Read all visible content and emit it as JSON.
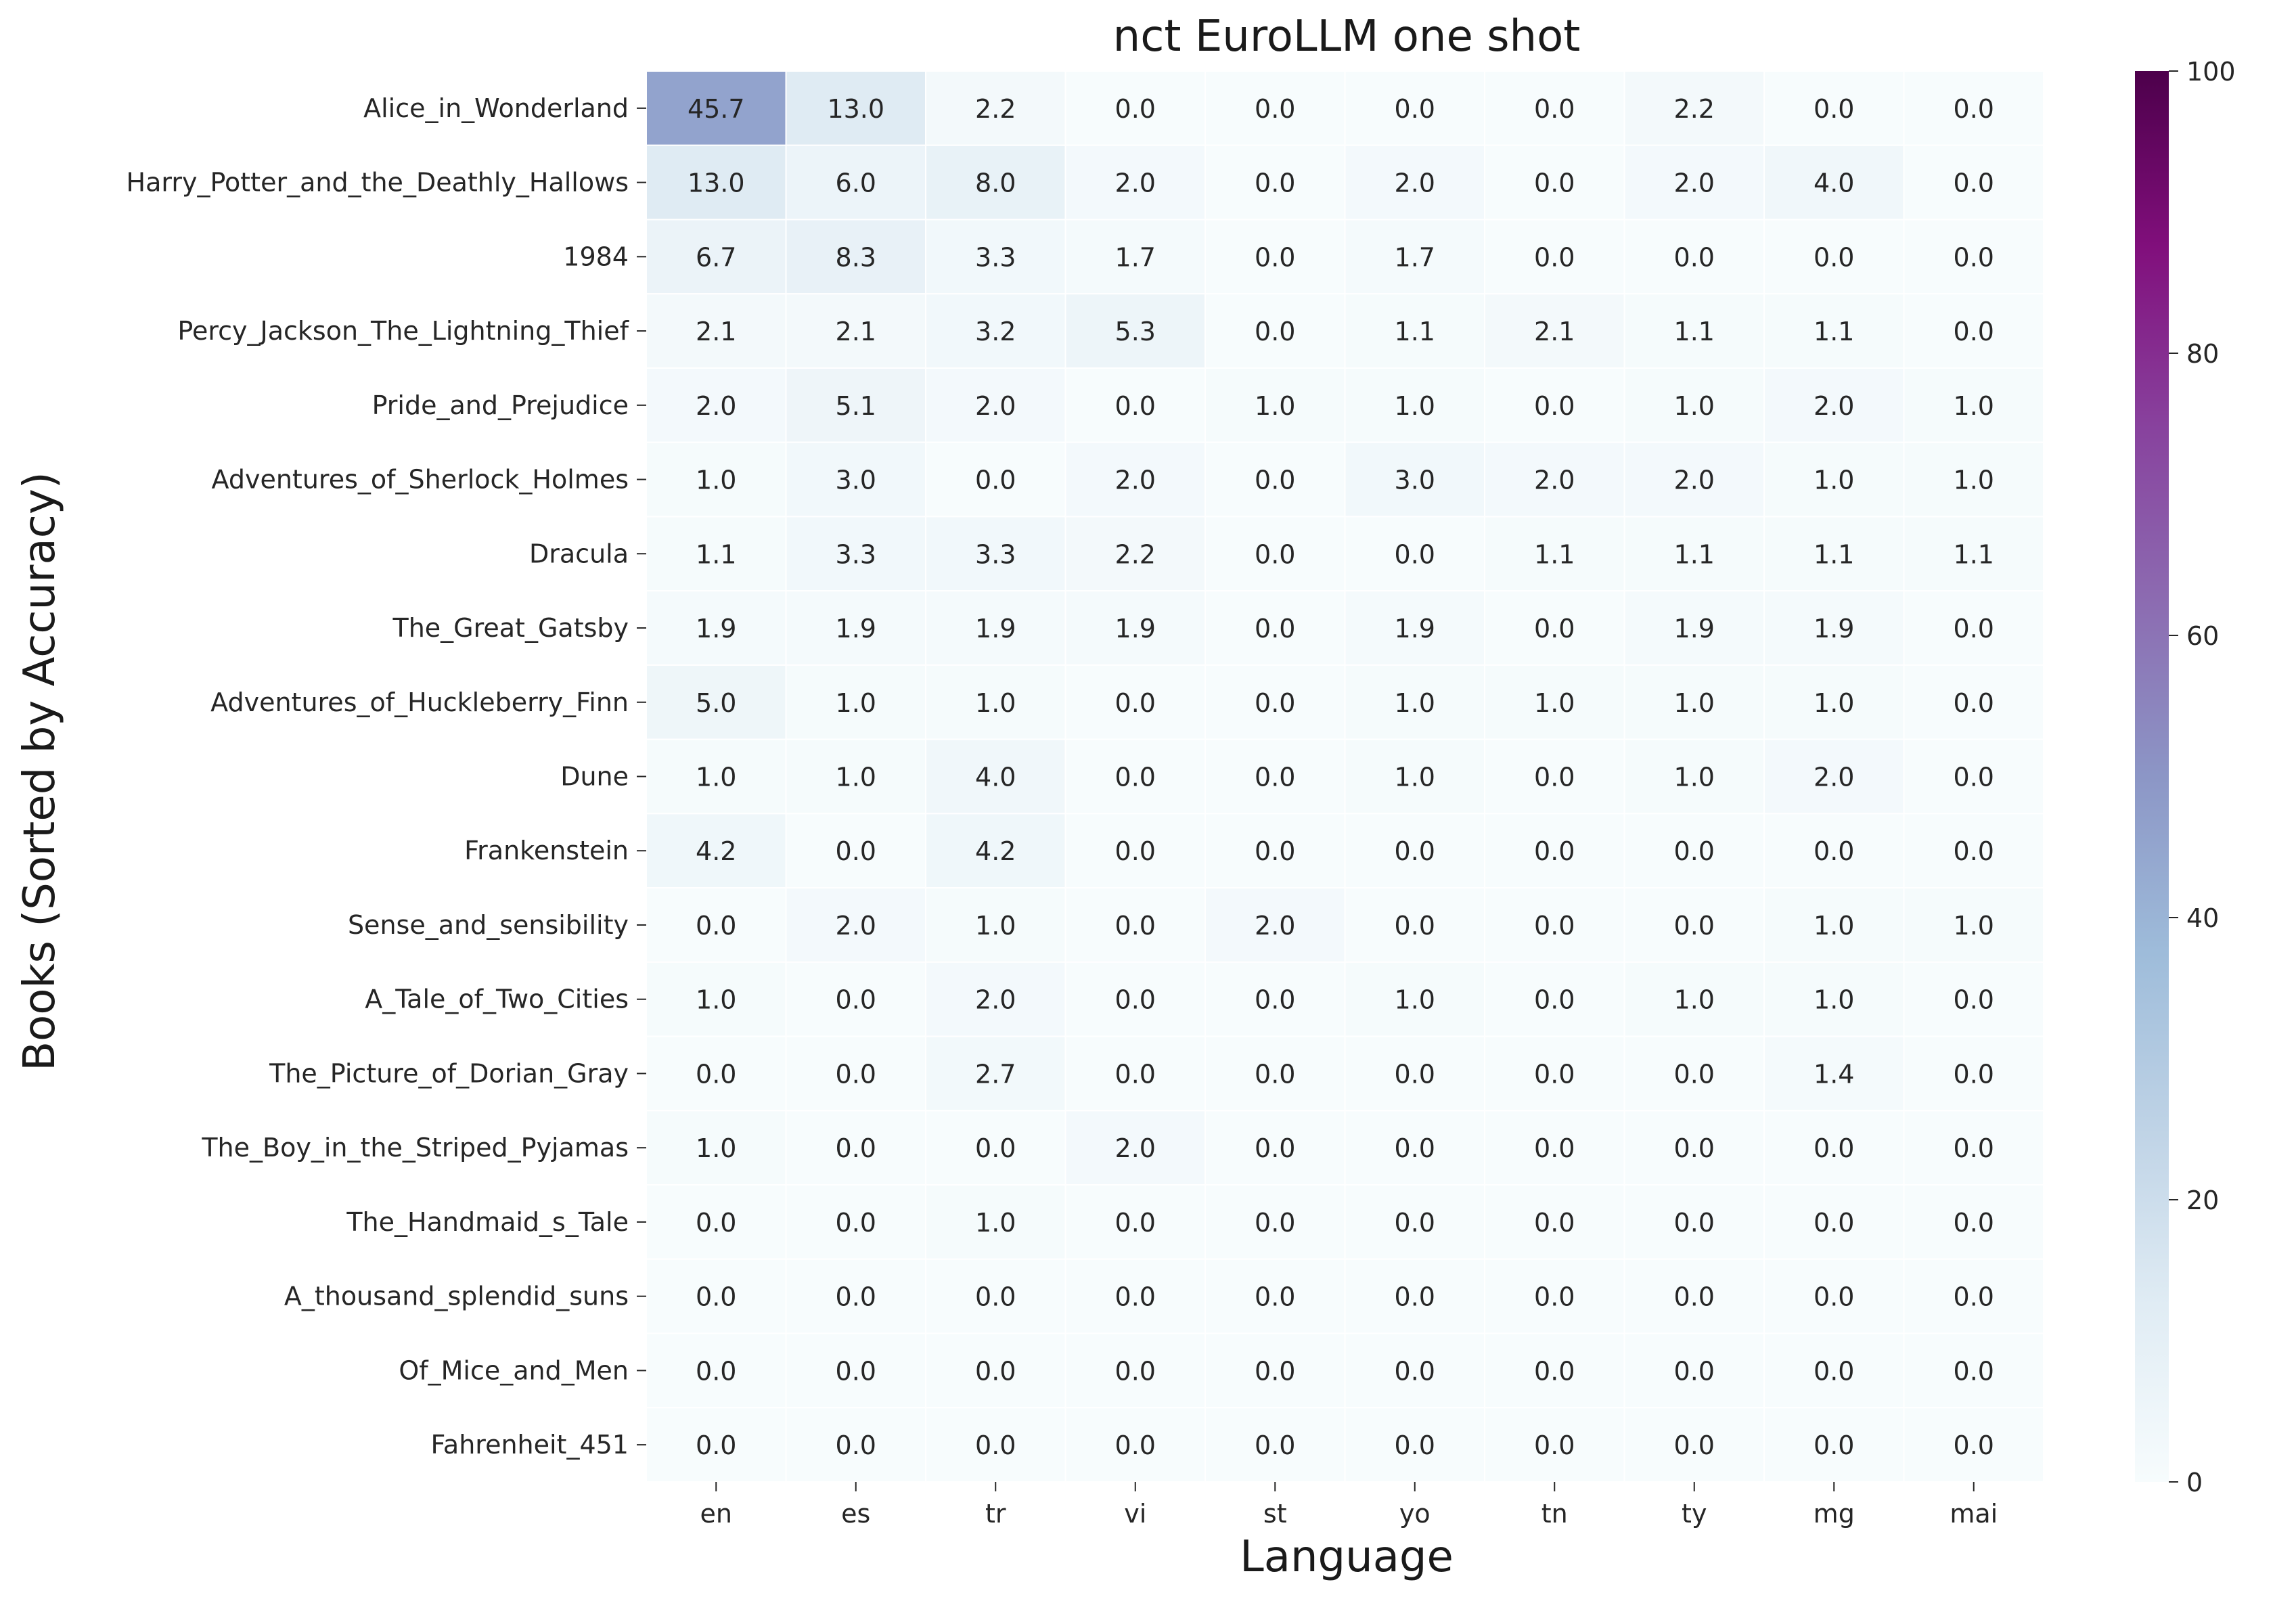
{
  "chart_data": {
    "type": "heatmap",
    "title": "nct EuroLLM one shot",
    "xlabel": "Language",
    "ylabel": "Books (Sorted by Accuracy)",
    "columns": [
      "en",
      "es",
      "tr",
      "vi",
      "st",
      "yo",
      "tn",
      "ty",
      "mg",
      "mai"
    ],
    "rows": [
      "Alice_in_Wonderland",
      "Harry_Potter_and_the_Deathly_Hallows",
      "1984",
      "Percy_Jackson_The_Lightning_Thief",
      "Pride_and_Prejudice",
      "Adventures_of_Sherlock_Holmes",
      "Dracula",
      "The_Great_Gatsby",
      "Adventures_of_Huckleberry_Finn",
      "Dune",
      "Frankenstein",
      "Sense_and_sensibility",
      "A_Tale_of_Two_Cities",
      "The_Picture_of_Dorian_Gray",
      "The_Boy_in_the_Striped_Pyjamas",
      "The_Handmaid_s_Tale",
      "A_thousand_splendid_suns",
      "Of_Mice_and_Men",
      "Fahrenheit_451"
    ],
    "values": [
      [
        45.7,
        13.0,
        2.2,
        0.0,
        0.0,
        0.0,
        0.0,
        2.2,
        0.0,
        0.0
      ],
      [
        13.0,
        6.0,
        8.0,
        2.0,
        0.0,
        2.0,
        0.0,
        2.0,
        4.0,
        0.0
      ],
      [
        6.7,
        8.3,
        3.3,
        1.7,
        0.0,
        1.7,
        0.0,
        0.0,
        0.0,
        0.0
      ],
      [
        2.1,
        2.1,
        3.2,
        5.3,
        0.0,
        1.1,
        2.1,
        1.1,
        1.1,
        0.0
      ],
      [
        2.0,
        5.1,
        2.0,
        0.0,
        1.0,
        1.0,
        0.0,
        1.0,
        2.0,
        1.0
      ],
      [
        1.0,
        3.0,
        0.0,
        2.0,
        0.0,
        3.0,
        2.0,
        2.0,
        1.0,
        1.0
      ],
      [
        1.1,
        3.3,
        3.3,
        2.2,
        0.0,
        0.0,
        1.1,
        1.1,
        1.1,
        1.1
      ],
      [
        1.9,
        1.9,
        1.9,
        1.9,
        0.0,
        1.9,
        0.0,
        1.9,
        1.9,
        0.0
      ],
      [
        5.0,
        1.0,
        1.0,
        0.0,
        0.0,
        1.0,
        1.0,
        1.0,
        1.0,
        0.0
      ],
      [
        1.0,
        1.0,
        4.0,
        0.0,
        0.0,
        1.0,
        0.0,
        1.0,
        2.0,
        0.0
      ],
      [
        4.2,
        0.0,
        4.2,
        0.0,
        0.0,
        0.0,
        0.0,
        0.0,
        0.0,
        0.0
      ],
      [
        0.0,
        2.0,
        1.0,
        0.0,
        2.0,
        0.0,
        0.0,
        0.0,
        1.0,
        1.0
      ],
      [
        1.0,
        0.0,
        2.0,
        0.0,
        0.0,
        1.0,
        0.0,
        1.0,
        1.0,
        0.0
      ],
      [
        0.0,
        0.0,
        2.7,
        0.0,
        0.0,
        0.0,
        0.0,
        0.0,
        1.4,
        0.0
      ],
      [
        1.0,
        0.0,
        0.0,
        2.0,
        0.0,
        0.0,
        0.0,
        0.0,
        0.0,
        0.0
      ],
      [
        0.0,
        0.0,
        1.0,
        0.0,
        0.0,
        0.0,
        0.0,
        0.0,
        0.0,
        0.0
      ],
      [
        0.0,
        0.0,
        0.0,
        0.0,
        0.0,
        0.0,
        0.0,
        0.0,
        0.0,
        0.0
      ],
      [
        0.0,
        0.0,
        0.0,
        0.0,
        0.0,
        0.0,
        0.0,
        0.0,
        0.0,
        0.0
      ],
      [
        0.0,
        0.0,
        0.0,
        0.0,
        0.0,
        0.0,
        0.0,
        0.0,
        0.0,
        0.0
      ]
    ],
    "colorbar": {
      "colormap": "BuPu",
      "range": [
        0,
        100
      ],
      "ticks": [
        0,
        20,
        40,
        60,
        80,
        100
      ]
    },
    "grid": false,
    "legend": "colorbar-right"
  }
}
